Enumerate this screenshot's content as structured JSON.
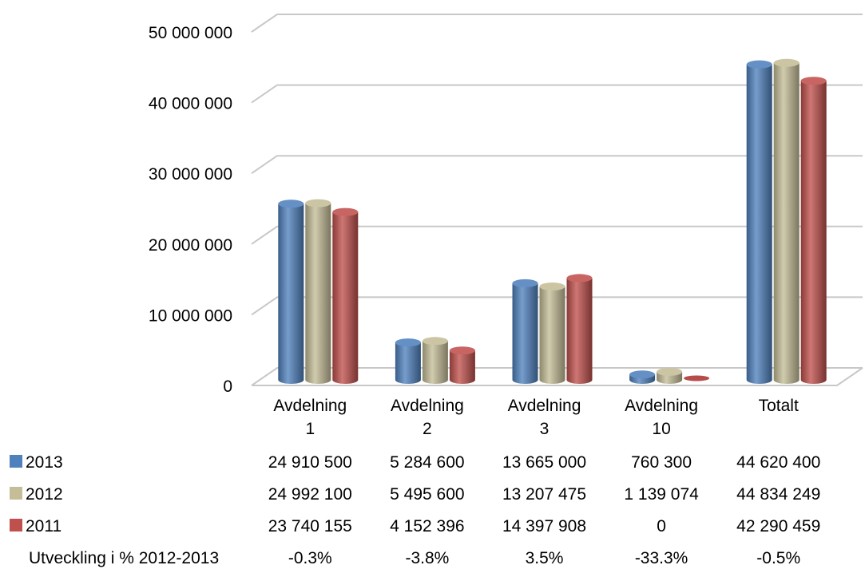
{
  "chart_data": {
    "type": "bar",
    "categories": [
      [
        "Avdelning",
        "1"
      ],
      [
        "Avdelning",
        "2"
      ],
      [
        "Avdelning",
        "3"
      ],
      [
        "Avdelning",
        "10"
      ],
      [
        "Totalt"
      ]
    ],
    "series": [
      {
        "name": "2013",
        "color": "#4f81bd",
        "values": [
          24910500,
          5284600,
          13665000,
          760300,
          44620400
        ],
        "labels": [
          "24 910 500",
          "5 284 600",
          "13 665 000",
          "760 300",
          "44 620 400"
        ]
      },
      {
        "name": "2012",
        "color": "#c4bd97",
        "values": [
          24992100,
          5495600,
          13207475,
          1139074,
          44834249
        ],
        "labels": [
          "24 992 100",
          "5 495 600",
          "13 207 475",
          "1 139 074",
          "44 834 249"
        ]
      },
      {
        "name": "2011",
        "color": "#c0504d",
        "values": [
          23740155,
          4152396,
          14397908,
          0,
          42290459
        ],
        "labels": [
          "23 740 155",
          "4 152 396",
          "14 397 908",
          "0",
          "42 290 459"
        ]
      }
    ],
    "extra_row": {
      "label": "Utveckling i % 2012-2013",
      "values": [
        "-0.3%",
        "-3.8%",
        "3.5%",
        "-33.3%",
        "-0.5%"
      ]
    },
    "yticks": [
      0,
      10000000,
      20000000,
      30000000,
      40000000,
      50000000
    ],
    "ytick_labels": [
      "0",
      "10 000 000",
      "20 000 000",
      "30 000 000",
      "40 000 000",
      "50 000 000"
    ],
    "ylim": [
      0,
      50000000
    ],
    "grid": true,
    "legend": "data-table-left",
    "style": "3d-cylinder"
  }
}
